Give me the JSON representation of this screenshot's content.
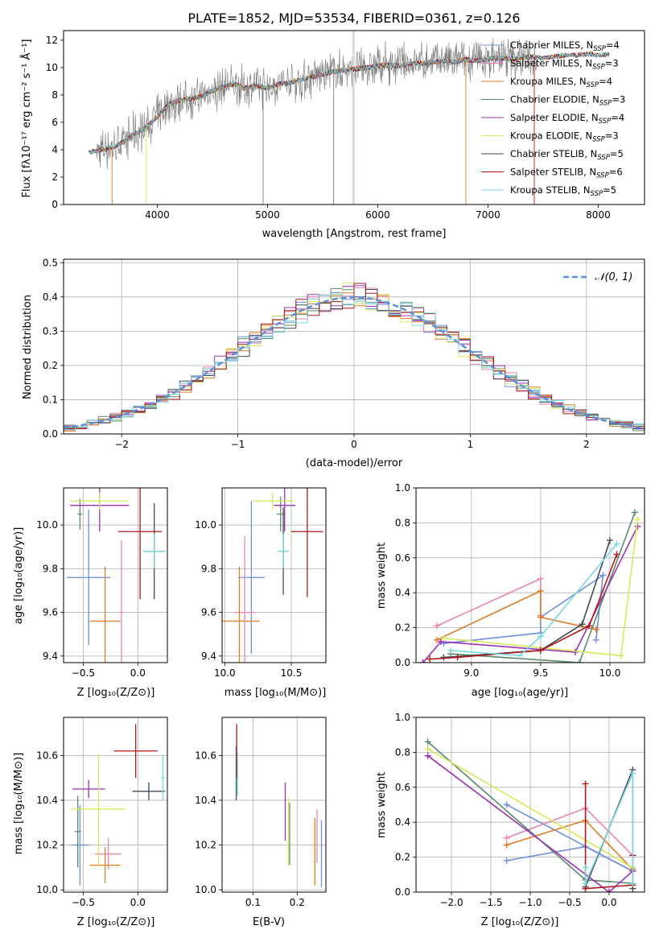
{
  "colors": {
    "chabrier_miles": "#6f8fdc",
    "salpeter_miles": "#e884b4",
    "kroupa_miles": "#e07b20",
    "chabrier_elodie": "#5a8a6a",
    "salpeter_elodie": "#9b30b5",
    "kroupa_elodie": "#d7e85a",
    "chabrier_stelib": "#404a55",
    "salpeter_stelib": "#b01818",
    "kroupa_stelib": "#78d8e0",
    "observed": "#7a7a7a",
    "normal_curve": "#5b8fd6"
  },
  "chart_data": [
    {
      "id": "spectrum",
      "type": "line",
      "title": "PLATE=1852, MJD=53534, FIBERID=0361, z=0.126",
      "xlabel": "wavelength [Angstrom, rest frame]",
      "ylabel": "Flux [fλ10⁻¹⁷ erg cm⁻² s⁻¹ Å⁻¹]",
      "xlim": [
        3150,
        8420
      ],
      "ylim": [
        0,
        12.7
      ],
      "xticks": [
        "4000",
        "5000",
        "6000",
        "7000",
        "8000"
      ],
      "yticks": [
        "0",
        "2",
        "4",
        "6",
        "8",
        "10",
        "12"
      ],
      "grid": false,
      "legend_position": "upper-right",
      "x": [
        3380,
        3500,
        3600,
        3700,
        3800,
        3900,
        4000,
        4100,
        4200,
        4300,
        4400,
        4500,
        4600,
        4700,
        4800,
        4900,
        5000,
        5100,
        5200,
        5300,
        5400,
        5500,
        5600,
        5700,
        5800,
        5900,
        6000,
        6100,
        6200,
        6300,
        6400,
        6500,
        6600,
        6700,
        6800,
        6900,
        7000,
        7100,
        7200,
        7300,
        7400,
        7500,
        7600,
        7700,
        7800,
        7900,
        8000,
        8100
      ],
      "model_flux": [
        3.8,
        4.0,
        4.2,
        4.6,
        5.2,
        5.6,
        6.4,
        7.3,
        7.6,
        7.7,
        7.9,
        8.3,
        8.6,
        8.8,
        8.5,
        8.7,
        8.5,
        8.8,
        8.9,
        9.1,
        9.3,
        9.5,
        9.7,
        9.8,
        9.9,
        10.0,
        10.1,
        10.2,
        10.1,
        10.3,
        10.3,
        10.4,
        10.5,
        10.4,
        10.6,
        10.5,
        10.6,
        10.7,
        10.6,
        10.7,
        10.8,
        10.7,
        10.8,
        10.9,
        10.9,
        11.0,
        10.9,
        11.0
      ],
      "legend": [
        {
          "label": "Chabrier MILES, N",
          "sub": "SSP",
          "suffix": "=4",
          "color_key": "chabrier_miles"
        },
        {
          "label": "Salpeter MILES, N",
          "sub": "SSP",
          "suffix": "=3",
          "color_key": "salpeter_miles"
        },
        {
          "label": "Kroupa MILES, N",
          "sub": "SSP",
          "suffix": "=4",
          "color_key": "kroupa_miles"
        },
        {
          "label": "Chabrier ELODIE, N",
          "sub": "SSP",
          "suffix": "=3",
          "color_key": "chabrier_elodie"
        },
        {
          "label": "Salpeter ELODIE, N",
          "sub": "SSP",
          "suffix": "=4",
          "color_key": "salpeter_elodie"
        },
        {
          "label": "Kroupa ELODIE, N",
          "sub": "SSP",
          "suffix": "=3",
          "color_key": "kroupa_elodie"
        },
        {
          "label": "Chabrier STELIB, N",
          "sub": "SSP",
          "suffix": "=5",
          "color_key": "chabrier_stelib"
        },
        {
          "label": "Salpeter STELIB, N",
          "sub": "SSP",
          "suffix": "=6",
          "color_key": "salpeter_stelib"
        },
        {
          "label": "Kroupa STELIB, N",
          "sub": "SSP",
          "suffix": "=5",
          "color_key": "kroupa_stelib"
        }
      ]
    },
    {
      "id": "residuals",
      "type": "line",
      "xlabel": "(data-model)/error",
      "ylabel": "Normed distribution",
      "xlim": [
        -2.5,
        2.5
      ],
      "ylim": [
        0,
        0.51
      ],
      "xticks": [
        "−2",
        "−1",
        "0",
        "1",
        "2"
      ],
      "xtick_values": [
        -2,
        -1,
        0,
        1,
        2
      ],
      "yticks": [
        "0.0",
        "0.1",
        "0.2",
        "0.3",
        "0.4",
        "0.5"
      ],
      "ytick_values": [
        0,
        0.1,
        0.2,
        0.3,
        0.4,
        0.5
      ],
      "grid": true,
      "legend_position": "upper-right",
      "legend": [
        {
          "label": "𝒩(0, 1)",
          "color_key": "normal_curve"
        }
      ],
      "bin_width": 0.1
    },
    {
      "id": "age_vs_z",
      "type": "scatter",
      "xlabel": "Z [log₁₀(Z/Z⊙)]",
      "ylabel": "age [log₁₀(age/yr)]",
      "xlim": [
        -0.68,
        0.27
      ],
      "ylim": [
        9.37,
        10.17
      ],
      "xticks": [
        "−0.5",
        "0.0"
      ],
      "xtick_values": [
        -0.5,
        0.0
      ],
      "yticks": [
        "9.4",
        "9.6",
        "9.8",
        "10.0"
      ],
      "ytick_values": [
        9.4,
        9.6,
        9.8,
        10.0
      ],
      "grid": true,
      "series": [
        {
          "color_key": "chabrier_miles",
          "x": -0.45,
          "xerr": 0.2,
          "y": 9.76,
          "yerr": 0.31
        },
        {
          "color_key": "salpeter_miles",
          "x": -0.15,
          "xerr": 0.02,
          "y": 9.6,
          "yerr": 0.33
        },
        {
          "color_key": "kroupa_miles",
          "x": -0.3,
          "xerr": 0.14,
          "y": 9.56,
          "yerr": 0.25
        },
        {
          "color_key": "chabrier_elodie",
          "x": -0.53,
          "xerr": 0.02,
          "y": 10.05,
          "yerr": 0.07
        },
        {
          "color_key": "salpeter_elodie",
          "x": -0.35,
          "xerr": 0.27,
          "y": 10.09,
          "yerr": 0.12
        },
        {
          "color_key": "kroupa_elodie",
          "x": -0.35,
          "xerr": 0.27,
          "y": 10.11,
          "yerr": 0.04
        },
        {
          "color_key": "chabrier_stelib",
          "x": 0.15,
          "xerr": 0.1,
          "y": 9.88,
          "yerr": 0.22
        },
        {
          "color_key": "salpeter_stelib",
          "x": 0.02,
          "xerr": 0.2,
          "y": 9.97,
          "yerr": 0.31
        },
        {
          "color_key": "kroupa_stelib",
          "x": 0.15,
          "xerr": 0.1,
          "y": 9.88,
          "yerr": 0.08
        }
      ]
    },
    {
      "id": "age_vs_mass",
      "type": "scatter",
      "xlabel": "mass [log₁₀(M/M⊙)]",
      "xlim": [
        9.98,
        10.76
      ],
      "ylim": [
        9.37,
        10.17
      ],
      "xticks": [
        "10.0",
        "10.5"
      ],
      "xtick_values": [
        10.0,
        10.5
      ],
      "yticks": [
        "9.4",
        "9.6",
        "9.8",
        "10.0"
      ],
      "ytick_values": [
        9.4,
        9.6,
        9.8,
        10.0
      ],
      "grid": true,
      "series": [
        {
          "color_key": "chabrier_miles",
          "x": 10.2,
          "xerr": 0.1,
          "y": 9.76,
          "yerr": 0.35
        },
        {
          "color_key": "salpeter_miles",
          "x": 10.15,
          "xerr": 0.08,
          "y": 9.6,
          "yerr": 0.35
        },
        {
          "color_key": "kroupa_miles",
          "x": 10.11,
          "xerr": 0.15,
          "y": 9.56,
          "yerr": 0.25
        },
        {
          "color_key": "chabrier_elodie",
          "x": 10.42,
          "xerr": 0.03,
          "y": 10.05,
          "yerr": 0.08
        },
        {
          "color_key": "salpeter_elodie",
          "x": 10.45,
          "xerr": 0.08,
          "y": 10.09,
          "yerr": 0.12
        },
        {
          "color_key": "kroupa_elodie",
          "x": 10.36,
          "xerr": 0.15,
          "y": 10.11,
          "yerr": 0.04
        },
        {
          "color_key": "chabrier_stelib",
          "x": 10.44,
          "xerr": 0.04,
          "y": 9.88,
          "yerr": 0.2
        },
        {
          "color_key": "salpeter_stelib",
          "x": 10.62,
          "xerr": 0.12,
          "y": 9.97,
          "yerr": 0.3
        },
        {
          "color_key": "kroupa_stelib",
          "x": 10.44,
          "xerr": 0.04,
          "y": 9.88,
          "yerr": 0.08
        }
      ]
    },
    {
      "id": "mass_weight_vs_age",
      "type": "line",
      "xlabel": "age [log₁₀(age/yr)]",
      "ylabel": "mass weight",
      "xlim": [
        8.6,
        10.25
      ],
      "ylim": [
        0,
        1.0
      ],
      "xticks": [
        "9.0",
        "9.5",
        "10.0"
      ],
      "xtick_values": [
        9.0,
        9.5,
        10.0
      ],
      "yticks": [
        "0.0",
        "0.2",
        "0.4",
        "0.6",
        "0.8",
        "1.0"
      ],
      "ytick_values": [
        0,
        0.2,
        0.4,
        0.6,
        0.8,
        1.0
      ],
      "grid": true,
      "series": [
        {
          "color_key": "chabrier_miles",
          "points": [
            [
              8.8,
              0.11
            ],
            [
              9.5,
              0.17
            ],
            [
              9.5,
              0.26
            ],
            [
              9.95,
              0.5
            ],
            [
              9.9,
              0.13
            ]
          ]
        },
        {
          "color_key": "salpeter_miles",
          "points": [
            [
              8.75,
              0.21
            ],
            [
              9.5,
              0.48
            ],
            [
              9.5,
              0.27
            ]
          ]
        },
        {
          "color_key": "kroupa_miles",
          "points": [
            [
              8.75,
              0.13
            ],
            [
              9.5,
              0.41
            ],
            [
              9.5,
              0.26
            ],
            [
              9.9,
              0.19
            ]
          ]
        },
        {
          "color_key": "chabrier_elodie",
          "points": [
            [
              8.85,
              0.05
            ],
            [
              9.78,
              0.0
            ],
            [
              10.18,
              0.86
            ]
          ]
        },
        {
          "color_key": "salpeter_elodie",
          "points": [
            [
              8.65,
              0.0
            ],
            [
              8.78,
              0.12
            ],
            [
              9.75,
              0.06
            ],
            [
              10.2,
              0.78
            ]
          ]
        },
        {
          "color_key": "kroupa_elodie",
          "points": [
            [
              8.8,
              0.14
            ],
            [
              10.08,
              0.04
            ],
            [
              10.2,
              0.82
            ]
          ]
        },
        {
          "color_key": "chabrier_stelib",
          "points": [
            [
              8.8,
              0.03
            ],
            [
              9.5,
              0.07
            ],
            [
              9.8,
              0.22
            ],
            [
              10.0,
              0.7
            ]
          ]
        },
        {
          "color_key": "salpeter_stelib",
          "points": [
            [
              8.7,
              0.02
            ],
            [
              8.9,
              0.03
            ],
            [
              9.5,
              0.07
            ],
            [
              9.85,
              0.21
            ],
            [
              10.05,
              0.62
            ]
          ]
        },
        {
          "color_key": "kroupa_stelib",
          "points": [
            [
              8.85,
              0.07
            ],
            [
              9.35,
              0.04
            ],
            [
              9.5,
              0.15
            ],
            [
              10.05,
              0.68
            ]
          ]
        }
      ]
    },
    {
      "id": "mass_vs_z",
      "type": "scatter",
      "xlabel": "Z [log₁₀(Z/Z⊙)]",
      "ylabel": "mass [log₁₀(M/M⊙)]",
      "xlim": [
        -0.68,
        0.27
      ],
      "ylim": [
        9.99,
        10.77
      ],
      "xticks": [
        "−0.5",
        "0.0"
      ],
      "xtick_values": [
        -0.5,
        0.0
      ],
      "yticks": [
        "10.0",
        "10.2",
        "10.4",
        "10.6"
      ],
      "ytick_values": [
        10.0,
        10.2,
        10.4,
        10.6
      ],
      "grid": true,
      "series": [
        {
          "color_key": "chabrier_miles",
          "x": -0.53,
          "xerr": 0.08,
          "y": 10.2,
          "yerr": 0.18
        },
        {
          "color_key": "salpeter_miles",
          "x": -0.27,
          "xerr": 0.12,
          "y": 10.16,
          "yerr": 0.07
        },
        {
          "color_key": "kroupa_miles",
          "x": -0.3,
          "xerr": 0.14,
          "y": 10.11,
          "yerr": 0.08
        },
        {
          "color_key": "chabrier_elodie",
          "x": -0.55,
          "xerr": 0.03,
          "y": 10.26,
          "yerr": 0.16
        },
        {
          "color_key": "salpeter_elodie",
          "x": -0.45,
          "xerr": 0.15,
          "y": 10.45,
          "yerr": 0.04
        },
        {
          "color_key": "kroupa_elodie",
          "x": -0.36,
          "xerr": 0.25,
          "y": 10.36,
          "yerr": 0.25
        },
        {
          "color_key": "chabrier_stelib",
          "x": 0.1,
          "xerr": 0.15,
          "y": 10.44,
          "yerr": 0.04
        },
        {
          "color_key": "salpeter_stelib",
          "x": -0.02,
          "xerr": 0.2,
          "y": 10.62,
          "yerr": 0.12
        },
        {
          "color_key": "kroupa_stelib",
          "x": 0.23,
          "xerr": 0.02,
          "y": 10.5,
          "yerr": 0.1
        }
      ]
    },
    {
      "id": "mass_vs_ebv",
      "type": "scatter",
      "xlabel": "E(B-V)",
      "xlim": [
        0.03,
        0.265
      ],
      "ylim": [
        9.99,
        10.77
      ],
      "xticks": [
        "0.1",
        "0.2"
      ],
      "xtick_values": [
        0.1,
        0.2
      ],
      "yticks": [
        "10.0",
        "10.2",
        "10.4",
        "10.6"
      ],
      "ytick_values": [
        10.0,
        10.2,
        10.4,
        10.6
      ],
      "grid": true,
      "series": [
        {
          "color_key": "chabrier_miles",
          "x": 0.255,
          "y": 10.16,
          "yerr": 0.15
        },
        {
          "color_key": "salpeter_miles",
          "x": 0.245,
          "y": 10.24,
          "yerr": 0.12
        },
        {
          "color_key": "kroupa_miles",
          "x": 0.24,
          "y": 10.17,
          "yerr": 0.15
        },
        {
          "color_key": "chabrier_elodie",
          "x": 0.183,
          "y": 10.25,
          "yerr": 0.14
        },
        {
          "color_key": "salpeter_elodie",
          "x": 0.173,
          "y": 10.35,
          "yerr": 0.13
        },
        {
          "color_key": "kroupa_elodie",
          "x": 0.18,
          "y": 10.26,
          "yerr": 0.15
        },
        {
          "color_key": "chabrier_stelib",
          "x": 0.062,
          "y": 10.52,
          "yerr": 0.12
        },
        {
          "color_key": "salpeter_stelib",
          "x": 0.063,
          "y": 10.62,
          "yerr": 0.12
        },
        {
          "color_key": "kroupa_stelib",
          "x": 0.065,
          "y": 10.52,
          "yerr": 0.1
        }
      ]
    },
    {
      "id": "mass_weight_vs_z",
      "type": "line",
      "xlabel": "Z [log₁₀(Z/Z⊙)]",
      "ylabel": "mass weight",
      "xlim": [
        -2.45,
        0.45
      ],
      "ylim": [
        0,
        1.0
      ],
      "xticks": [
        "−2.0",
        "−1.5",
        "−1.0",
        "−0.5",
        "0.0"
      ],
      "xtick_values": [
        -2.0,
        -1.5,
        -1.0,
        -0.5,
        0.0
      ],
      "yticks": [
        "0.0",
        "0.2",
        "0.4",
        "0.6",
        "0.8",
        "1.0"
      ],
      "ytick_values": [
        0,
        0.2,
        0.4,
        0.6,
        0.8,
        1.0
      ],
      "grid": true,
      "series": [
        {
          "color_key": "chabrier_miles",
          "points": [
            [
              -1.3,
              0.18
            ],
            [
              -0.3,
              0.26
            ],
            [
              0.3,
              0.12
            ],
            [
              -1.3,
              0.5
            ]
          ]
        },
        {
          "color_key": "salpeter_miles",
          "points": [
            [
              -1.3,
              0.31
            ],
            [
              -0.3,
              0.48
            ],
            [
              0.3,
              0.21
            ]
          ]
        },
        {
          "color_key": "kroupa_miles",
          "points": [
            [
              -1.3,
              0.27
            ],
            [
              -0.3,
              0.41
            ],
            [
              0.3,
              0.13
            ]
          ]
        },
        {
          "color_key": "chabrier_elodie",
          "points": [
            [
              -2.3,
              0.86
            ],
            [
              -0.3,
              0.07
            ],
            [
              0.3,
              0.05
            ]
          ]
        },
        {
          "color_key": "salpeter_elodie",
          "points": [
            [
              -2.3,
              0.78
            ],
            [
              0.0,
              0.0
            ],
            [
              0.3,
              0.12
            ]
          ]
        },
        {
          "color_key": "kroupa_elodie",
          "points": [
            [
              -2.3,
              0.82
            ],
            [
              0.3,
              0.14
            ]
          ]
        },
        {
          "color_key": "chabrier_stelib",
          "points": [
            [
              -0.3,
              0.03
            ],
            [
              0.3,
              0.7
            ],
            [
              0.3,
              0.02
            ]
          ]
        },
        {
          "color_key": "salpeter_stelib",
          "points": [
            [
              -0.3,
              0.62
            ],
            [
              -0.3,
              0.02
            ],
            [
              0.3,
              0.04
            ],
            [
              0.3,
              0.21
            ]
          ]
        },
        {
          "color_key": "kroupa_stelib",
          "points": [
            [
              -0.3,
              0.14
            ],
            [
              -0.3,
              0.05
            ],
            [
              0.3,
              0.68
            ],
            [
              0.3,
              0.05
            ]
          ]
        }
      ]
    }
  ]
}
